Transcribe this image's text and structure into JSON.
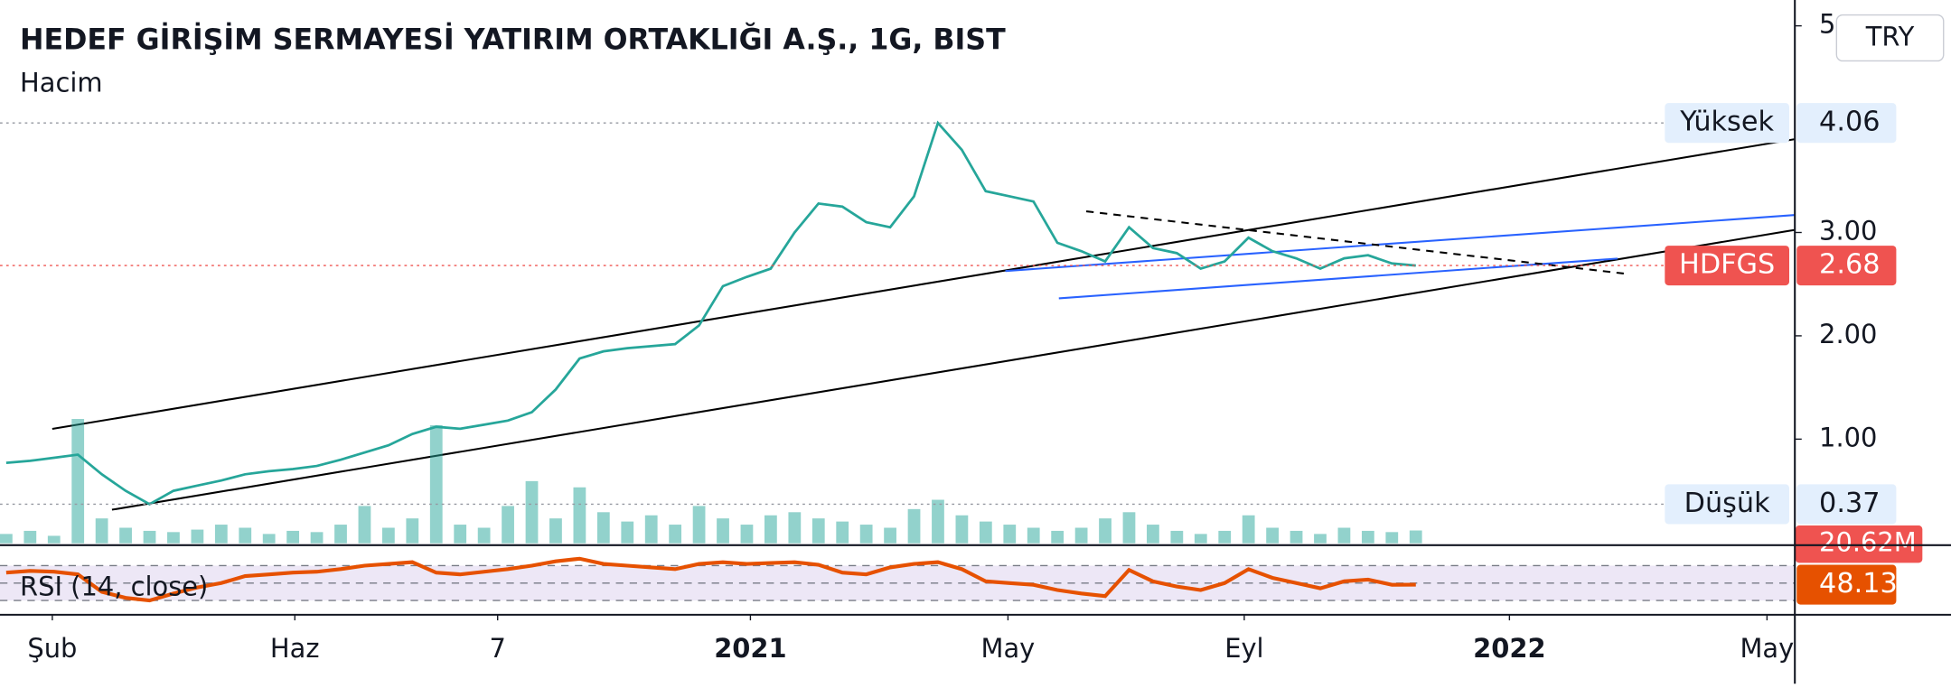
{
  "chart_data": [
    {
      "type": "line",
      "title": "HEDEF GİRİŞİM SERMAYESİ YATIRIM ORTAKLIĞI A.Ş., 1G, BIST",
      "currency": "TRY",
      "high_label": "Yüksek",
      "low_label": "Düşük",
      "xlim": [
        -0.26,
        74.84
      ],
      "ylim": [
        -0.02,
        5.25
      ],
      "yticks": [
        {
          "value": 1,
          "label": "1.00"
        },
        {
          "value": 2,
          "label": "2.00"
        },
        {
          "value": 3,
          "label": "3.00"
        },
        5
      ],
      "y2lim": [
        0,
        220
      ],
      "series": [
        {
          "name": "HDFGS",
          "color": "#26a69a",
          "values": [
            0.77,
            0.79,
            0.82,
            0.85,
            0.66,
            0.5,
            0.37,
            0.5,
            0.55,
            0.6,
            0.66,
            0.69,
            0.71,
            0.74,
            0.8,
            0.87,
            0.94,
            1.05,
            1.12,
            1.1,
            1.14,
            1.18,
            1.26,
            1.48,
            1.78,
            1.85,
            1.88,
            1.9,
            1.92,
            2.1,
            2.48,
            2.57,
            2.65,
            3.0,
            3.28,
            3.25,
            3.1,
            3.05,
            3.35,
            4.06,
            3.8,
            3.4,
            3.35,
            3.3,
            2.9,
            2.82,
            2.72,
            3.05,
            2.85,
            2.8,
            2.65,
            2.72,
            2.95,
            2.82,
            2.75,
            2.65,
            2.75,
            2.78,
            2.7,
            2.68
          ]
        },
        {
          "name": "Hacim",
          "color": "#26a69a",
          "axis": "y2",
          "values": [
            15,
            20,
            12,
            200,
            40,
            25,
            20,
            18,
            22,
            30,
            25,
            15,
            20,
            18,
            30,
            60,
            25,
            40,
            190,
            30,
            25,
            60,
            100,
            40,
            90,
            50,
            35,
            45,
            30,
            60,
            40,
            30,
            45,
            50,
            40,
            35,
            30,
            25,
            55,
            70,
            45,
            35,
            30,
            25,
            20,
            25,
            40,
            50,
            30,
            20,
            15,
            20,
            45,
            25,
            20,
            15,
            25,
            20,
            18,
            20.62
          ],
          "value_labels": [
            null,
            null,
            null,
            null,
            null,
            null,
            null,
            null,
            null,
            null,
            null,
            null,
            null,
            null,
            null,
            null,
            null,
            null,
            null,
            null,
            null,
            null,
            null,
            null,
            null,
            null,
            null,
            null,
            null,
            null,
            null,
            null,
            null,
            null,
            null,
            null,
            null,
            null,
            null,
            null,
            null,
            null,
            null,
            null,
            null,
            null,
            null,
            null,
            null,
            null,
            null,
            null,
            null,
            null,
            null,
            null,
            null,
            null,
            null,
            "20.62M"
          ]
        }
      ]
    },
    {
      "type": "line",
      "xlim": [
        -0.26,
        74.84
      ],
      "ylim": [
        14.3,
        91.4
      ],
      "bands": [
        30,
        50,
        70
      ],
      "xticks": [
        {
          "value": 1.93,
          "label": "Şub"
        },
        {
          "value": 12.08,
          "label": "Haz"
        },
        {
          "value": 20.57,
          "label": "7"
        },
        {
          "value": 31.15,
          "label": "2021"
        },
        {
          "value": 41.93,
          "label": "May"
        },
        {
          "value": 51.82,
          "label": "Eyl"
        },
        {
          "value": 62.92,
          "label": "2022"
        },
        {
          "value": 73.7,
          "label": "May"
        }
      ],
      "series": [
        {
          "name": "RSI (14, close)",
          "color": "#e65100",
          "values": [
            62,
            64,
            63,
            60,
            40,
            33,
            30,
            38,
            45,
            50,
            58,
            60,
            62,
            63,
            66,
            70,
            72,
            74,
            62,
            60,
            63,
            66,
            70,
            75,
            78,
            72,
            70,
            68,
            66,
            72,
            74,
            72,
            73,
            74,
            71,
            62,
            60,
            68,
            72,
            74,
            66,
            52,
            50,
            48,
            42,
            38,
            35,
            65,
            52,
            46,
            42,
            50,
            66,
            56,
            50,
            44,
            52,
            54,
            48,
            48.13
          ]
        }
      ]
    }
  ]
}
